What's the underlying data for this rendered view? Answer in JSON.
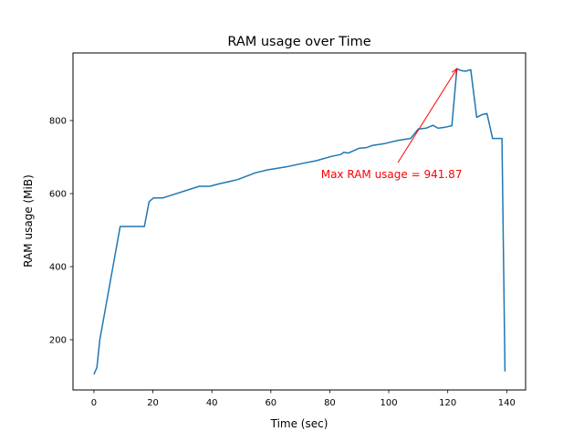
{
  "chart_data": {
    "type": "line",
    "title": "RAM usage over Time",
    "xlabel": "Time (sec)",
    "ylabel": "RAM usage (MiB)",
    "xlim": [
      -7.1,
      146.4
    ],
    "ylim": [
      62.5,
      985
    ],
    "xticks": [
      0,
      20,
      40,
      60,
      80,
      100,
      120,
      140
    ],
    "yticks": [
      200,
      400,
      600,
      800
    ],
    "grid": false,
    "line_color": "#1f77b4",
    "series": [
      {
        "name": "RAM usage",
        "x": [
          0,
          1,
          2,
          8.9,
          17.1,
          18.7,
          20.2,
          23.3,
          35.7,
          39.3,
          42,
          48.6,
          54.8,
          58.9,
          65.1,
          70.3,
          75.4,
          80.6,
          83.7,
          84.7,
          86.3,
          89.9,
          92.5,
          94.5,
          98.6,
          103.3,
          107.4,
          110,
          112.6,
          115,
          116.7,
          119.3,
          121.4,
          123.1,
          124.5,
          126,
          127.8,
          129.8,
          131.9,
          133.3,
          135.2,
          138.4,
          139.4
        ],
        "y": [
          105,
          124,
          200,
          510,
          510,
          578,
          588,
          588,
          620,
          620,
          626,
          638,
          657,
          665,
          673,
          682,
          690,
          702,
          707,
          713,
          711,
          724,
          726,
          732,
          737,
          746,
          751,
          777,
          779,
          787,
          779,
          782,
          786,
          941.87,
          937,
          935,
          939,
          809,
          817,
          819,
          751,
          751,
          113
        ]
      }
    ],
    "annotation": {
      "text": "Max RAM usage = 941.87",
      "xy": [
        123.1,
        941.87
      ],
      "xytext": [
        103.1,
        655
      ],
      "color": "#ff0000"
    }
  }
}
